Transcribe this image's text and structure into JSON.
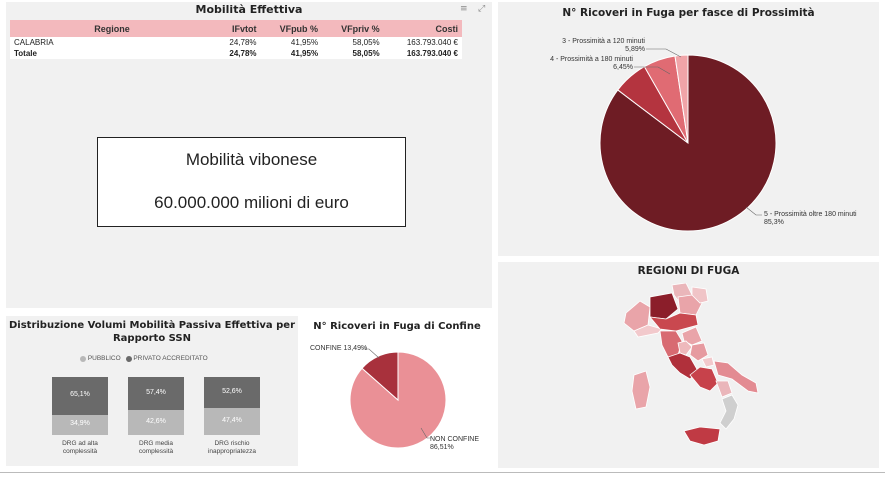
{
  "mobilita": {
    "title": "Mobilità Effettiva",
    "columns": [
      "Regione",
      "IFvtot",
      "VFpub %",
      "VFpriv %",
      "Costi"
    ],
    "rows": [
      {
        "regione": "CALABRIA",
        "ifvtot": "24,78%",
        "vfpub": "41,95%",
        "vfpriv": "58,05%",
        "costi": "163.793.040 €"
      }
    ],
    "total": {
      "regione": "Totale",
      "ifvtot": "24,78%",
      "vfpub": "41,95%",
      "vfpriv": "58,05%",
      "costi": "163.793.040 €"
    }
  },
  "callout": {
    "line1": "Mobilità vibonese",
    "line2": "60.000.000 milioni di euro"
  },
  "prossimita": {
    "title": "N° Ricoveri in Fuga per fasce di Prossimità",
    "labels": [
      {
        "name": "3 - Prossimità a 120 minuti",
        "value": "5,89%"
      },
      {
        "name": "4 - Prossimità a 180 minuti",
        "value": "6,45%"
      },
      {
        "name": "5 - Prossimità oltre 180 minuti",
        "value": "85,3%"
      }
    ]
  },
  "regioni": {
    "title": "REGIONI DI FUGA"
  },
  "distribuzione": {
    "title_line1": "Distribuzione Volumi Mobilità Passiva Effettiva per",
    "title_line2": "Rapporto SSN",
    "legend_pub": "PUBBLICO",
    "legend_priv": "PRIVATO ACCREDITATO",
    "bars": [
      {
        "priv": "65,1%",
        "pub": "34,9%",
        "label_line1": "DRG ad alta",
        "label_line2": "complessità",
        "priv_frac": 0.651
      },
      {
        "priv": "57,4%",
        "pub": "42,6%",
        "label_line1": "DRG media",
        "label_line2": "complessità",
        "priv_frac": 0.574
      },
      {
        "priv": "52,6%",
        "pub": "47,4%",
        "label_line1": "DRG rischio",
        "label_line2": "inappropriatezza",
        "priv_frac": 0.526
      }
    ]
  },
  "confine": {
    "title": "N° Ricoveri in Fuga di Confine",
    "confine_label": "CONFINE 13,49%",
    "non_confine_line1": "NON CONFINE",
    "non_confine_line2": "86,51%"
  },
  "chart_data": [
    {
      "type": "pie",
      "title": "N° Ricoveri in Fuga per fasce di Prossimità",
      "categories": [
        "5 - Prossimità oltre 180 minuti",
        "4 - Prossimità a 180 minuti",
        "3 - Prossimità a 120 minuti",
        "other"
      ],
      "values": [
        85.3,
        6.45,
        5.89,
        2.36
      ],
      "colors": [
        "#6e1c24",
        "#b4343f",
        "#e06b73",
        "#f0a4a8"
      ]
    },
    {
      "type": "pie",
      "title": "N° Ricoveri in Fuga di Confine",
      "categories": [
        "NON CONFINE",
        "CONFINE"
      ],
      "values": [
        86.51,
        13.49
      ],
      "colors": [
        "#ea9096",
        "#a8313c"
      ]
    },
    {
      "type": "bar",
      "title": "Distribuzione Volumi Mobilità Passiva Effettiva per Rapporto SSN",
      "categories": [
        "DRG ad alta complessità",
        "DRG media complessità",
        "DRG rischio inappropriatezza"
      ],
      "series": [
        {
          "name": "PRIVATO ACCREDITATO",
          "values": [
            65.1,
            57.4,
            52.6
          ]
        },
        {
          "name": "PUBBLICO",
          "values": [
            34.9,
            42.6,
            47.4
          ]
        }
      ],
      "colors": [
        "#6a6a6a",
        "#b8b8b8"
      ]
    }
  ]
}
